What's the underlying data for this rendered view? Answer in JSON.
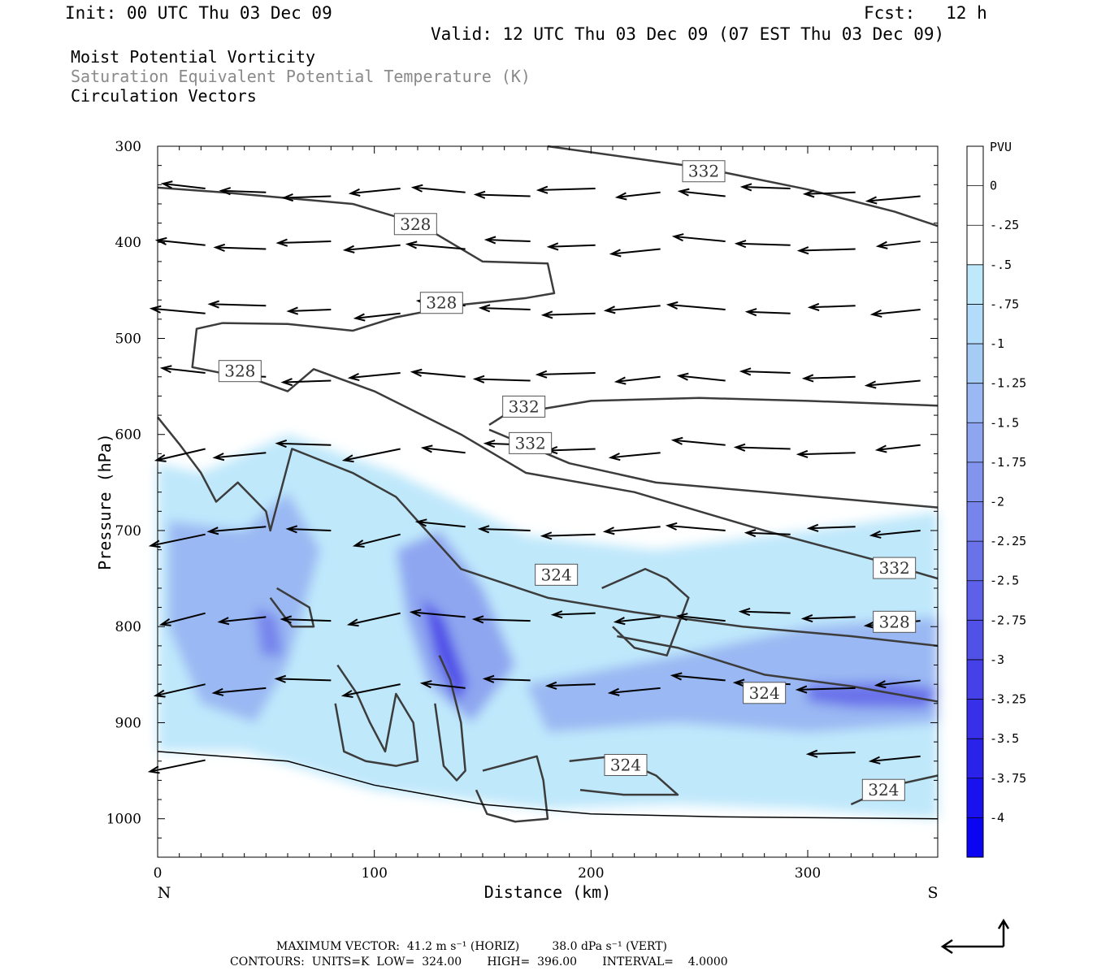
{
  "header": {
    "init": "Init: 00 UTC Thu 03 Dec 09",
    "fcst": "Fcst:   12 h",
    "valid": "Valid: 12 UTC Thu 03 Dec 09 (07 EST Thu 03 Dec 09)"
  },
  "legend_lines": [
    "Moist Potential Vorticity",
    "Saturation Equivalent Potential Temperature (K)",
    "Circulation Vectors"
  ],
  "chart_data": {
    "type": "heatmap",
    "xlabel": "Distance (km)",
    "ylabel": "Pressure (hPa)",
    "xlim": [
      0,
      360
    ],
    "ylim": [
      1040,
      300
    ],
    "x_ticks": [
      0,
      100,
      200,
      300
    ],
    "y_ticks": [
      300,
      400,
      500,
      600,
      700,
      800,
      900,
      1000
    ],
    "x_end_labels": {
      "left": "N",
      "right": "S"
    },
    "colorbar": {
      "unit": "PVU",
      "levels": [
        "0",
        "-.25",
        "-.5",
        "-.75",
        "-1",
        "-1.25",
        "-1.5",
        "-1.75",
        "-2",
        "-2.25",
        "-2.5",
        "-2.75",
        "-3",
        "-3.25",
        "-3.5",
        "-3.75",
        "-4"
      ],
      "colors": [
        "#ffffff",
        "#ffffff",
        "#bfe8fb",
        "#b3dcfa",
        "#a6ccf6",
        "#9ab8f3",
        "#8ea6f0",
        "#8294ee",
        "#7684ec",
        "#6a72ea",
        "#5d60e9",
        "#5150e8",
        "#4540e8",
        "#3830e8",
        "#2a22ea",
        "#1a12ee",
        "#0b04f3"
      ]
    },
    "contour_labels": [
      {
        "value": "332",
        "x": 252,
        "p": 326
      },
      {
        "value": "328",
        "x": 119,
        "p": 381
      },
      {
        "value": "328",
        "x": 131,
        "p": 463
      },
      {
        "value": "328",
        "x": 38,
        "p": 534
      },
      {
        "value": "332",
        "x": 169,
        "p": 571
      },
      {
        "value": "332",
        "x": 172,
        "p": 609
      },
      {
        "value": "324",
        "x": 184,
        "p": 746
      },
      {
        "value": "332",
        "x": 340,
        "p": 739
      },
      {
        "value": "328",
        "x": 340,
        "p": 795
      },
      {
        "value": "324",
        "x": 280,
        "p": 869
      },
      {
        "value": "324",
        "x": 216,
        "p": 944
      },
      {
        "value": "324",
        "x": 335,
        "p": 970
      }
    ]
  },
  "footer": {
    "max_vector": "MAXIMUM VECTOR:  41.2 m s⁻¹ (HORIZ)         38.0 dPa s⁻¹ (VERT)",
    "contours": "CONTOURS:  UNITS=K  LOW=  324.00       HIGH=  396.00       INTERVAL=    4.0000"
  },
  "colors": {
    "contour": "#3c3c3c",
    "axis": "#000000"
  }
}
